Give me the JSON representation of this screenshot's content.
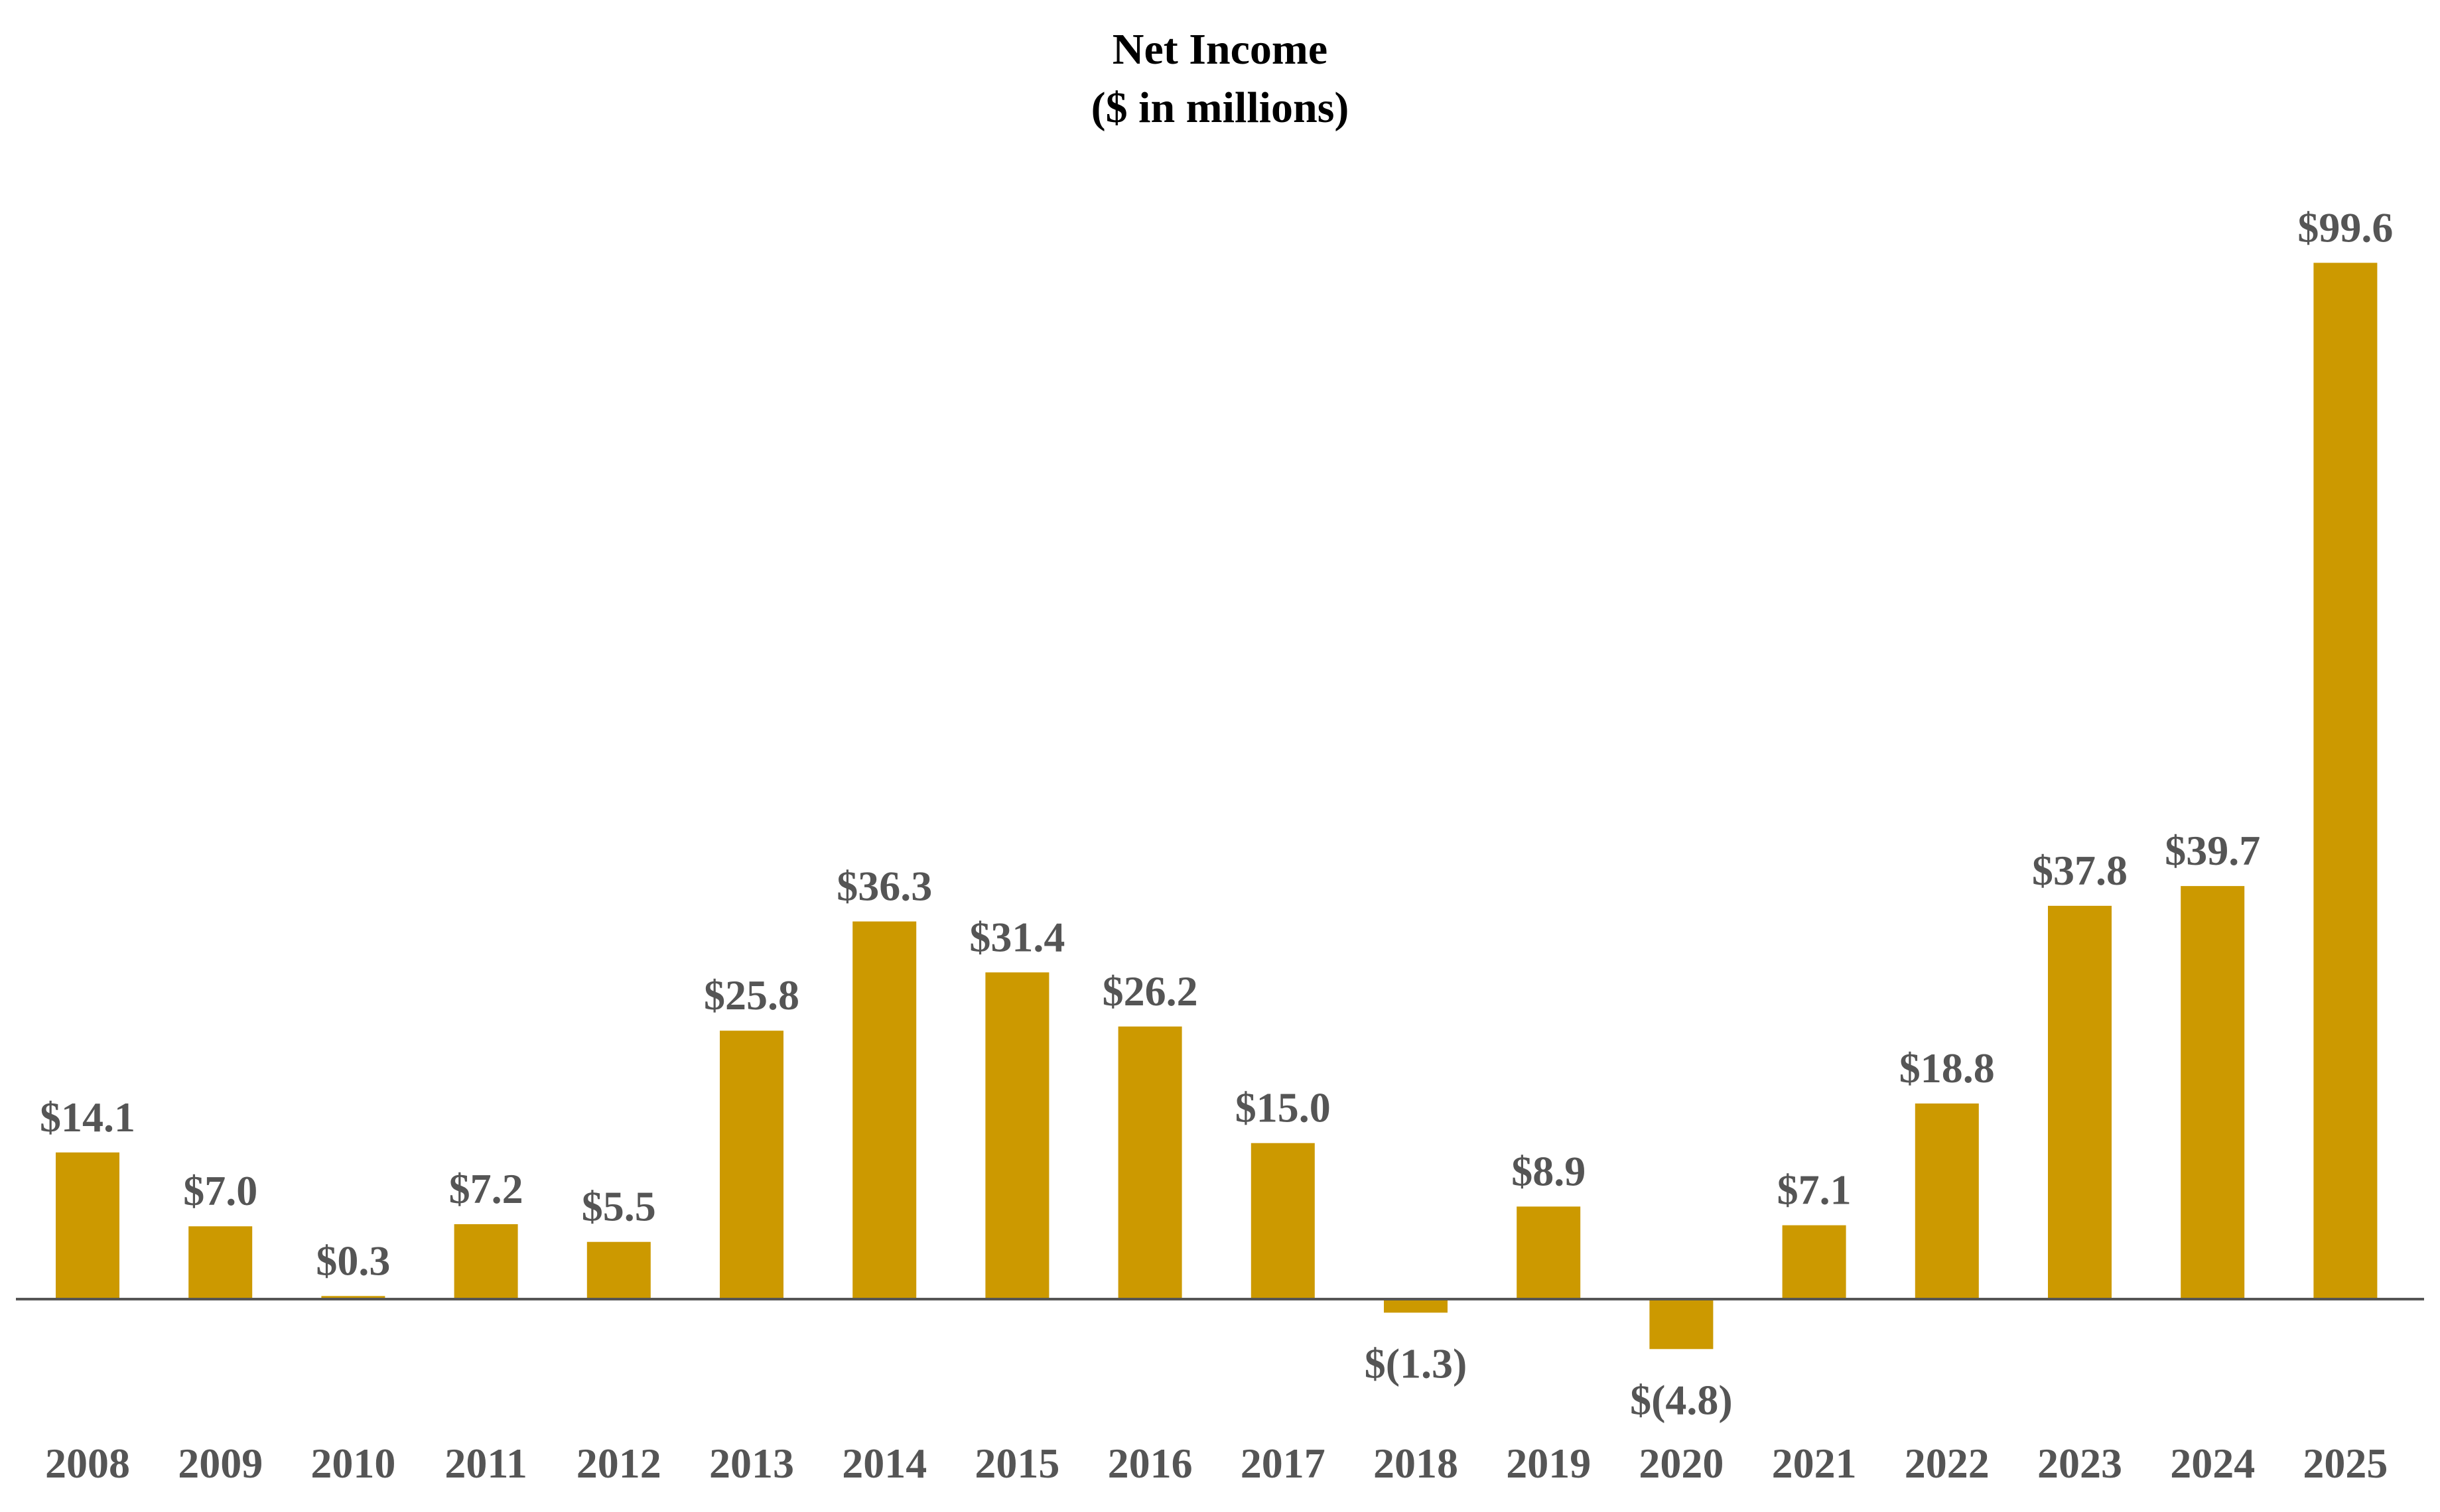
{
  "chart_data": {
    "type": "bar",
    "title": "Net Income",
    "subtitle": "($ in millions)",
    "categories": [
      "2008",
      "2009",
      "2010",
      "2011",
      "2012",
      "2013",
      "2014",
      "2015",
      "2016",
      "2017",
      "2018",
      "2019",
      "2020",
      "2021",
      "2022",
      "2023",
      "2024",
      "2025"
    ],
    "values": [
      14.1,
      7.0,
      0.3,
      7.2,
      5.5,
      25.8,
      36.3,
      31.4,
      26.2,
      15.0,
      -1.3,
      8.9,
      -4.8,
      7.1,
      18.8,
      37.8,
      39.7,
      99.6
    ],
    "data_labels": [
      "$14.1",
      "$7.0",
      "$0.3",
      "$7.2",
      "$5.5",
      "$25.8",
      "$36.3",
      "$31.4",
      "$26.2",
      "$15.0",
      "$(1.3)",
      "$8.9",
      "$(4.8)",
      "$7.1",
      "$18.8",
      "$37.8",
      "$39.7",
      "$99.6"
    ],
    "grid": false,
    "legend": "none",
    "colors": {
      "bar": "#CC9900",
      "axis": "#555555",
      "label": "#555555",
      "title": "#000000"
    }
  }
}
